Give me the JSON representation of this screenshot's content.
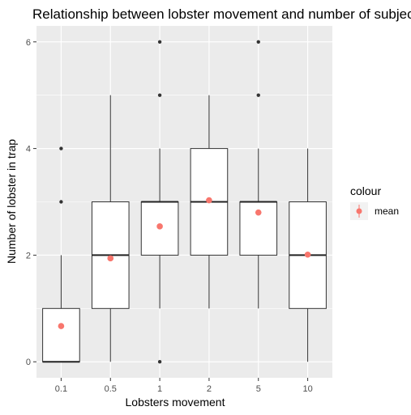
{
  "chart_data": {
    "type": "boxplot",
    "title": "Relationship between lobster movement and number of subjects",
    "xlabel": "Lobsters movement",
    "ylabel": "Number of lobster in trap",
    "ylim": [
      -0.3,
      6.3
    ],
    "yticks": [
      0,
      2,
      4,
      6
    ],
    "categories": [
      "0.1",
      "0.5",
      "1",
      "2",
      "5",
      "10"
    ],
    "boxes": [
      {
        "category": "0.1",
        "whisker_low": 0,
        "q1": 0,
        "median": 0,
        "q3": 1,
        "whisker_high": 2,
        "outliers": [
          3,
          4
        ],
        "mean": 0.67
      },
      {
        "category": "0.5",
        "whisker_low": 0,
        "q1": 1,
        "median": 2,
        "q3": 3,
        "whisker_high": 5,
        "outliers": [],
        "mean": 1.94
      },
      {
        "category": "1",
        "whisker_low": 1,
        "q1": 2,
        "median": 3,
        "q3": 3,
        "whisker_high": 4,
        "outliers": [
          0,
          5,
          6
        ],
        "mean": 2.54
      },
      {
        "category": "2",
        "whisker_low": 1,
        "q1": 2,
        "median": 3,
        "q3": 4,
        "whisker_high": 5,
        "outliers": [],
        "mean": 3.03
      },
      {
        "category": "5",
        "whisker_low": 1,
        "q1": 2,
        "median": 3,
        "q3": 3,
        "whisker_high": 4,
        "outliers": [
          5,
          6
        ],
        "mean": 2.8
      },
      {
        "category": "10",
        "whisker_low": 0,
        "q1": 1,
        "median": 2,
        "q3": 3,
        "whisker_high": 4,
        "outliers": [],
        "mean": 2.01
      }
    ],
    "legend": {
      "title": "colour",
      "entries": [
        {
          "label": "mean",
          "color": "#f8766d"
        }
      ],
      "position": "right"
    },
    "grid": true,
    "colors": {
      "panel_bg": "#ebebeb",
      "grid": "#ffffff",
      "mean": "#f8766d",
      "box_fill": "#ffffff",
      "box_line": "#333333",
      "outlier": "#333333"
    }
  }
}
